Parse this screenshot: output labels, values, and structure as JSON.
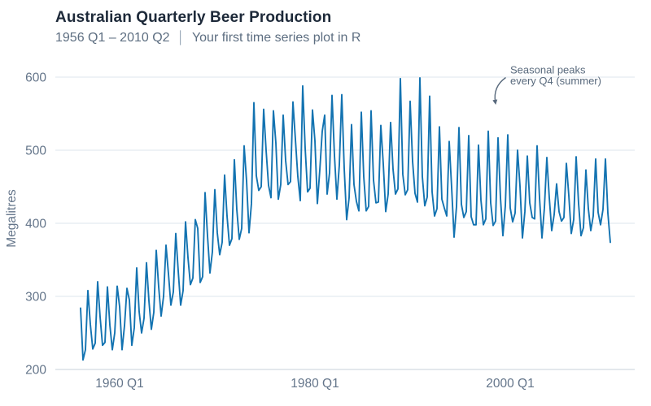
{
  "header": {
    "title": "Australian Quarterly Beer Production",
    "subtitle_range": "1956 Q1 – 2010 Q2",
    "subtitle_separator": "│",
    "subtitle_text": "Your first time series plot in R"
  },
  "colors": {
    "line": "#1373b1",
    "grid": "#dde4ec",
    "axis": "#c7d1da",
    "title": "#1d2939",
    "subtitle": "#5d6e81",
    "tick": "#64758a",
    "annotation": "#596a7d"
  },
  "chart_data": {
    "type": "line",
    "title": "Australian Quarterly Beer Production",
    "subtitle": "1956 Q1 – 2010 Q2 │ Your first time series plot in R",
    "xlabel": "",
    "ylabel": "Megalitres",
    "legend": "none",
    "grid": "horizontal-only",
    "x_start": "1956 Q1",
    "x_end": "2010 Q2",
    "frequency": "quarterly",
    "ylim": [
      200,
      600
    ],
    "yticks": [
      200,
      300,
      400,
      500,
      600
    ],
    "xticks": [
      {
        "label": "1960 Q1",
        "quarter_index": 16
      },
      {
        "label": "1980 Q1",
        "quarter_index": 96
      },
      {
        "label": "2000 Q1",
        "quarter_index": 176
      }
    ],
    "annotation": {
      "line1": "Seasonal peaks",
      "line2": "every Q4 (summer)"
    },
    "series_name": "Beer production (megalitres)",
    "values": [
      284,
      213,
      227,
      308,
      262,
      228,
      236,
      320,
      272,
      233,
      237,
      313,
      261,
      227,
      250,
      314,
      286,
      227,
      260,
      311,
      295,
      233,
      257,
      339,
      279,
      250,
      270,
      346,
      294,
      255,
      278,
      363,
      313,
      273,
      300,
      370,
      331,
      288,
      306,
      386,
      335,
      288,
      308,
      402,
      353,
      316,
      325,
      405,
      393,
      319,
      327,
      442,
      383,
      332,
      361,
      446,
      387,
      357,
      374,
      466,
      410,
      370,
      379,
      487,
      419,
      378,
      393,
      506,
      458,
      387,
      427,
      565,
      465,
      445,
      450,
      556,
      500,
      452,
      435,
      554,
      510,
      433,
      453,
      548,
      486,
      453,
      457,
      566,
      515,
      464,
      431,
      588,
      503,
      443,
      448,
      555,
      513,
      427,
      473,
      526,
      548,
      440,
      469,
      575,
      493,
      433,
      480,
      576,
      475,
      405,
      435,
      535,
      453,
      430,
      417,
      552,
      464,
      417,
      423,
      554,
      459,
      428,
      429,
      534,
      481,
      416,
      440,
      538,
      474,
      440,
      447,
      598,
      467,
      439,
      446,
      567,
      485,
      441,
      429,
      599,
      464,
      424,
      436,
      574,
      443,
      410,
      420,
      532,
      433,
      421,
      410,
      512,
      449,
      381,
      423,
      531,
      426,
      408,
      416,
      520,
      409,
      398,
      398,
      507,
      432,
      398,
      406,
      526,
      428,
      397,
      403,
      517,
      435,
      383,
      424,
      521,
      421,
      402,
      414,
      500,
      451,
      380,
      416,
      492,
      428,
      408,
      406,
      506,
      435,
      380,
      421,
      490,
      435,
      390,
      412,
      454,
      416,
      403,
      408,
      482,
      438,
      386,
      405,
      491,
      427,
      383,
      394,
      473,
      420,
      390,
      410,
      488,
      415,
      398,
      419,
      488,
      414,
      374
    ]
  }
}
